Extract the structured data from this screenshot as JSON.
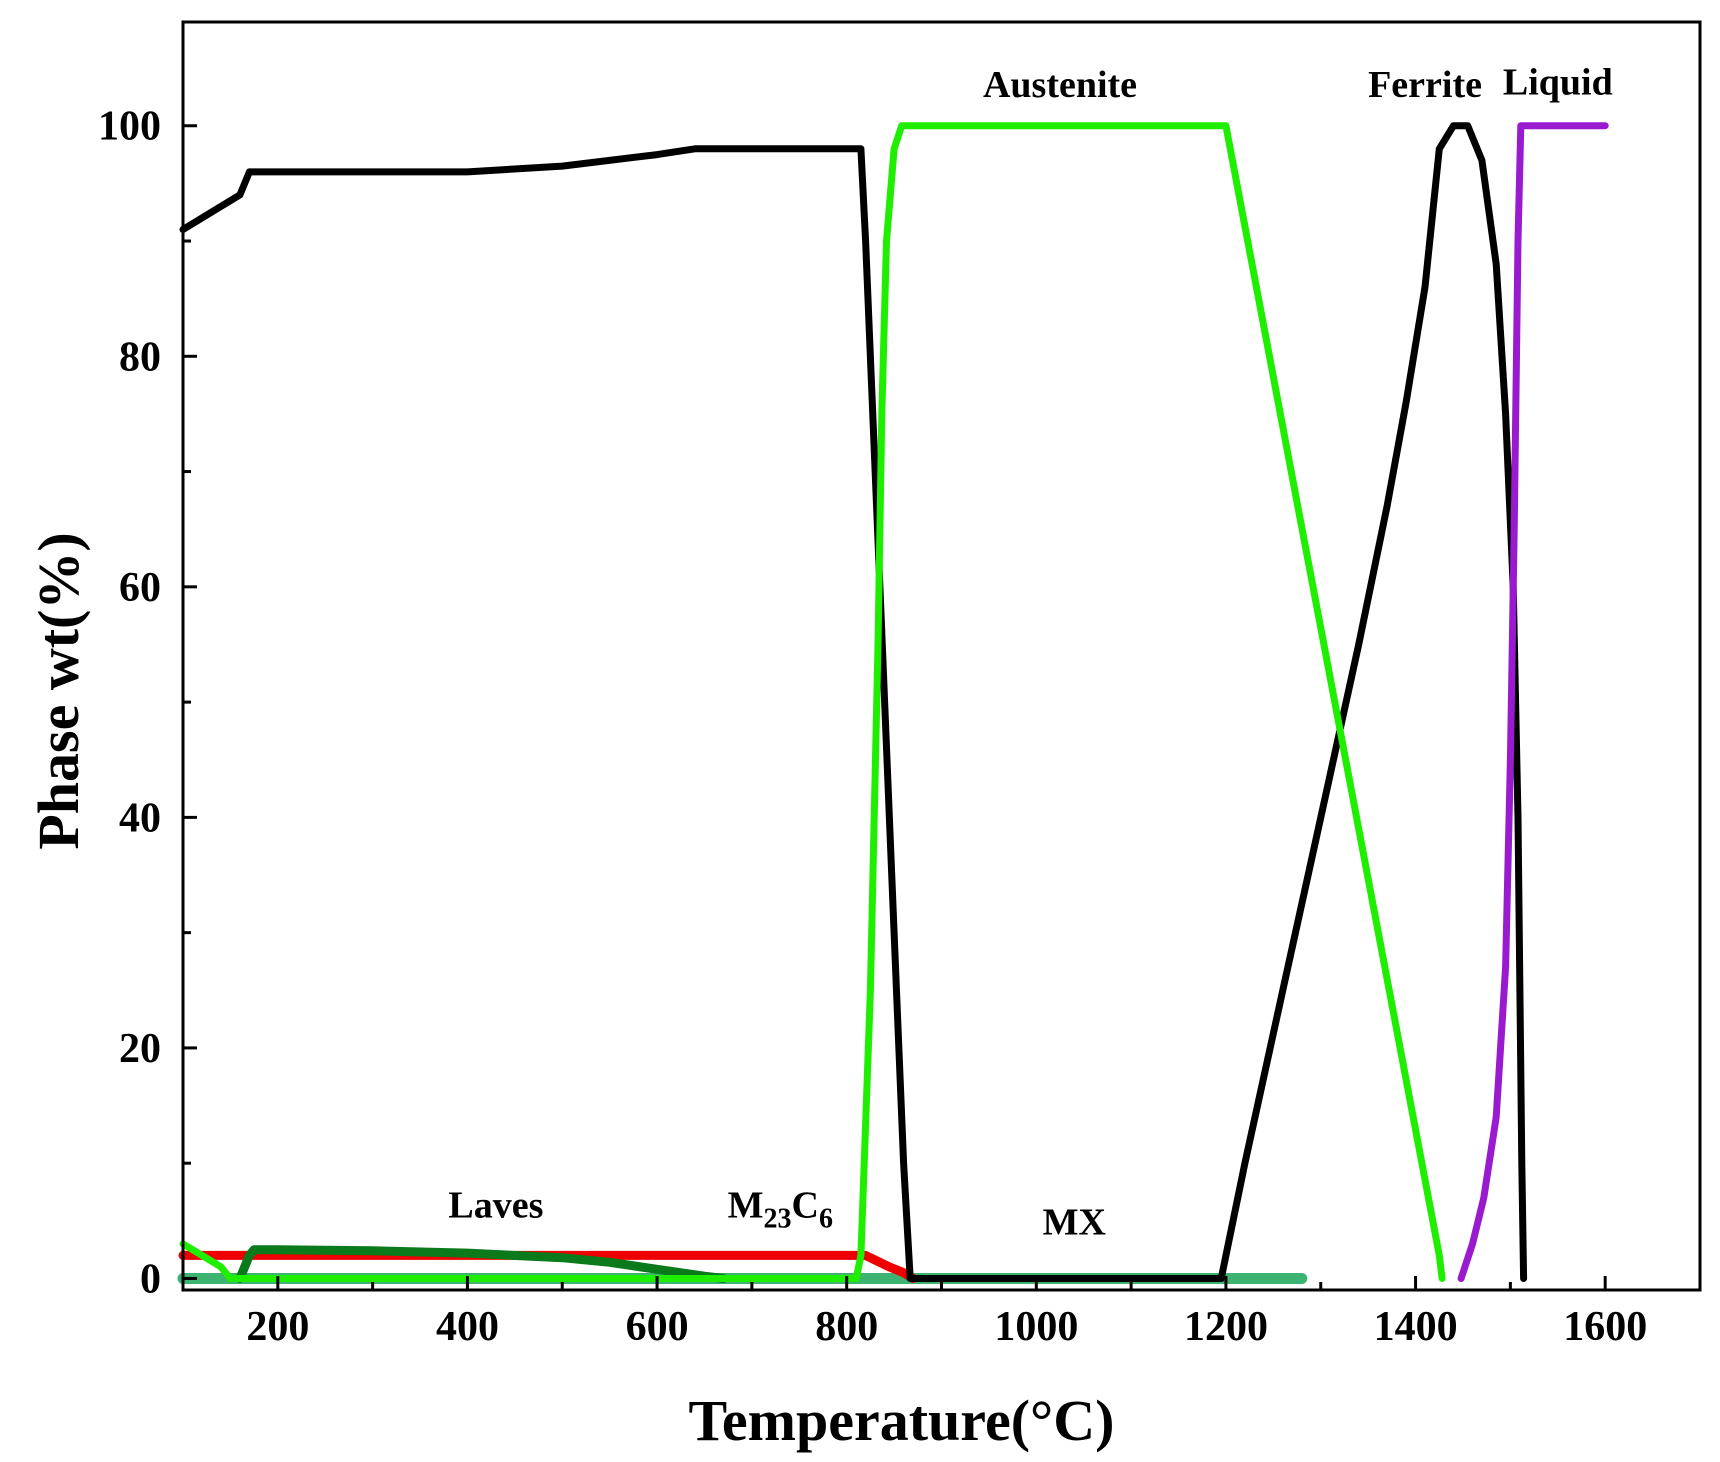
{
  "chart_data": {
    "type": "line",
    "title": "",
    "xlabel": "Temperature(°C)",
    "ylabel": "Phase wt(%)",
    "xlim": [
      100,
      1700
    ],
    "ylim": [
      -1,
      109
    ],
    "xticks": [
      200,
      400,
      600,
      800,
      1000,
      1200,
      1400,
      1600
    ],
    "yticks": [
      0,
      20,
      40,
      60,
      80,
      100
    ],
    "grid": false,
    "legend": "none",
    "series": [
      {
        "name": "Ferrite",
        "color": "#000000",
        "x": [
          100,
          160,
          170,
          200,
          300,
          400,
          500,
          600,
          640,
          660,
          700,
          815,
          820,
          835,
          850,
          860,
          867,
          1195,
          1220,
          1260,
          1300,
          1340,
          1370,
          1390,
          1410,
          1425,
          1440,
          1455,
          1470,
          1485,
          1495,
          1503,
          1508,
          1512,
          1514
        ],
        "y": [
          91,
          94,
          96,
          96,
          96,
          96,
          96.5,
          97.5,
          98,
          98,
          98,
          98,
          90,
          60,
          30,
          10,
          0,
          0,
          10,
          25,
          40,
          55,
          67,
          76,
          86,
          98,
          100,
          100,
          97,
          88,
          75,
          60,
          40,
          10,
          0
        ]
      },
      {
        "name": "Austenite",
        "color": "#1fee00",
        "x": [
          100,
          140,
          150,
          160,
          810,
          815,
          825,
          833,
          837,
          842,
          850,
          858,
          1195,
          1200,
          1425,
          1428
        ],
        "y": [
          3,
          1,
          0,
          0,
          0,
          2,
          25,
          55,
          75,
          90,
          98,
          100,
          100,
          100,
          2,
          0
        ]
      },
      {
        "name": "Liquid",
        "color": "#9a1ad0",
        "x": [
          1448,
          1460,
          1472,
          1485,
          1495,
          1500,
          1504,
          1508,
          1511,
          1520,
          1600
        ],
        "y": [
          0,
          3,
          7,
          14,
          27,
          45,
          65,
          90,
          100,
          100,
          100
        ]
      },
      {
        "name": "M23C6",
        "color": "#ee0000",
        "x": [
          100,
          200,
          300,
          400,
          500,
          600,
          700,
          800,
          820,
          845,
          860,
          870
        ],
        "y": [
          2,
          2,
          2,
          2,
          2,
          2,
          2,
          2,
          2,
          1,
          0.5,
          0
        ]
      },
      {
        "name": "Laves",
        "color": "#0b7a1a",
        "x": [
          160,
          170,
          175,
          200,
          300,
          400,
          500,
          550,
          600,
          650,
          670
        ],
        "y": [
          0,
          2,
          2.5,
          2.5,
          2.4,
          2.2,
          1.8,
          1.4,
          0.8,
          0.2,
          0
        ]
      },
      {
        "name": "MX",
        "color": "#3cb371",
        "x": [
          100,
          200,
          400,
          600,
          800,
          1000,
          1200,
          1280
        ],
        "y": [
          0,
          0,
          0,
          0,
          0,
          0,
          0,
          0
        ]
      }
    ],
    "annotations": [
      {
        "text": "Austenite",
        "x": 1025,
        "y": 102.5,
        "series": "Austenite"
      },
      {
        "text": "Ferrite",
        "x": 1410,
        "y": 102.5,
        "series": "Ferrite"
      },
      {
        "text": "Liquid",
        "x": 1550,
        "y": 102.7,
        "series": "Liquid"
      },
      {
        "text": "Laves",
        "x": 430,
        "y": 5.3,
        "series": "Laves"
      },
      {
        "text": "M",
        "sub1": "23",
        "mid": "C",
        "sub2": "6",
        "x": 730,
        "y": 5.3,
        "series": "M23C6"
      },
      {
        "text": "MX",
        "x": 1040,
        "y": 3.8,
        "series": "MX"
      }
    ]
  }
}
